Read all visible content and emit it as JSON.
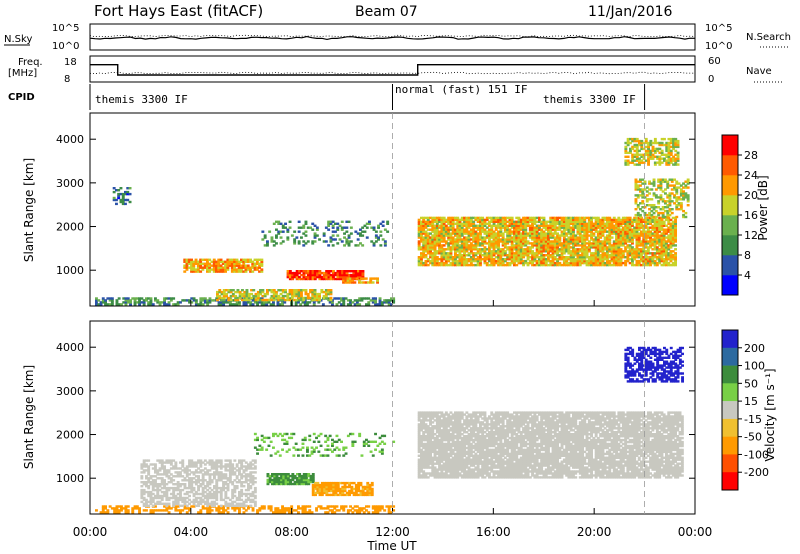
{
  "header": {
    "radar": "Fort Hays East (fitACF)",
    "beam": "Beam 07",
    "date": "11/Jan/2016"
  },
  "top_panels": {
    "nsky_label": "N.Sky",
    "nsky_ticks": [
      "10^5",
      "10^0"
    ],
    "nsearch_label": "N.Search",
    "nsearch_ticks": [
      "10^5",
      "10^0"
    ],
    "freq_label_1": "Freq.",
    "freq_label_2": "[MHz]",
    "freq_ticks": [
      "18",
      "8"
    ],
    "nave_label": "Nave",
    "nave_ticks": [
      "60",
      "0"
    ],
    "cpid_label": "CPID",
    "cpid_segments": [
      "themis 3300 IF",
      "normal (fast) 151 IF",
      "themis 3300 IF"
    ],
    "freq_step": [
      {
        "t": 0.0,
        "mhz": 14.8
      },
      {
        "t": 1.1,
        "mhz": 10.5
      },
      {
        "t": 13.0,
        "mhz": 14.8
      },
      {
        "t": 24.0,
        "mhz": 14.8
      }
    ],
    "cpid_boundaries_hours": [
      12.0,
      22.0
    ]
  },
  "panel_power": {
    "ylabel": "Slant Range [km]",
    "yticks": [
      "1000",
      "2000",
      "3000",
      "4000"
    ],
    "cbar_label": "Power [dB]",
    "cbar_ticks": [
      "4",
      "8",
      "12",
      "16",
      "20",
      "24",
      "28"
    ]
  },
  "panel_velocity": {
    "ylabel": "Slant Range [km]",
    "yticks": [
      "1000",
      "2000",
      "3000",
      "4000"
    ],
    "cbar_label": "Velocity [m s⁻¹]",
    "cbar_ticks": [
      "200",
      "100",
      "50",
      "15",
      "-15",
      "-50",
      "-100",
      "-200"
    ]
  },
  "xaxis": {
    "ticks": [
      "00:00",
      "04:00",
      "08:00",
      "12:00",
      "16:00",
      "20:00",
      "00:00"
    ],
    "label": "Time UT"
  },
  "colors": {
    "power_scale": [
      "#0000ff",
      "#2a52a8",
      "#3c8c46",
      "#6ab04e",
      "#c8d22a",
      "#ff9900",
      "#ff5a00",
      "#ff0000"
    ],
    "velocity_scale": [
      "#2222cc",
      "#2c6aa0",
      "#3c8c3c",
      "#78d046",
      "#c8c8c0",
      "#f0c030",
      "#ff9a00",
      "#ff5000",
      "#ff0000"
    ]
  },
  "chart_data": [
    {
      "type": "heatmap",
      "title": "Power",
      "xlabel": "Time UT",
      "ylabel": "Slant Range [km]",
      "xlim": [
        0,
        24
      ],
      "ylim": [
        180,
        4600
      ],
      "colorbar": {
        "label": "Power [dB]",
        "range": [
          0,
          32
        ]
      },
      "echo_regions": [
        {
          "t0": 0.2,
          "t1": 12.0,
          "r0": 200,
          "r1": 380,
          "level": 10,
          "density": 0.55
        },
        {
          "t0": 3.7,
          "t1": 6.8,
          "r0": 950,
          "r1": 1250,
          "level": 22,
          "density": 0.8
        },
        {
          "t0": 5.0,
          "t1": 9.5,
          "r0": 300,
          "r1": 550,
          "level": 18,
          "density": 0.7
        },
        {
          "t0": 7.8,
          "t1": 10.8,
          "r0": 780,
          "r1": 1000,
          "level": 27,
          "density": 0.9
        },
        {
          "t0": 10.0,
          "t1": 11.4,
          "r0": 700,
          "r1": 820,
          "level": 22,
          "density": 0.8
        },
        {
          "t0": 6.8,
          "t1": 11.8,
          "r0": 1550,
          "r1": 2100,
          "level": 10,
          "density": 0.25
        },
        {
          "t0": 13.0,
          "t1": 23.2,
          "r0": 1100,
          "r1": 2200,
          "level": 20,
          "density": 0.85
        },
        {
          "t0": 21.6,
          "t1": 23.7,
          "r0": 2200,
          "r1": 3100,
          "level": 17,
          "density": 0.5
        },
        {
          "t0": 21.2,
          "t1": 23.3,
          "r0": 3400,
          "r1": 4000,
          "level": 18,
          "density": 0.6
        },
        {
          "t0": 0.9,
          "t1": 1.6,
          "r0": 2500,
          "r1": 2900,
          "level": 8,
          "density": 0.35
        }
      ]
    },
    {
      "type": "heatmap",
      "title": "Velocity",
      "xlabel": "Time UT",
      "ylabel": "Slant Range [km]",
      "xlim": [
        0,
        24
      ],
      "ylim": [
        180,
        4600
      ],
      "colorbar": {
        "label": "Velocity [m s⁻¹]",
        "range": [
          -200,
          200
        ]
      },
      "echo_regions": [
        {
          "t0": 0.2,
          "t1": 12.0,
          "r0": 200,
          "r1": 380,
          "level": -60,
          "density": 0.5
        },
        {
          "t0": 2.0,
          "t1": 6.5,
          "r0": 350,
          "r1": 1400,
          "level": 0,
          "density": 0.6
        },
        {
          "t0": 7.0,
          "t1": 8.8,
          "r0": 850,
          "r1": 1100,
          "level": 40,
          "density": 0.9
        },
        {
          "t0": 8.8,
          "t1": 11.2,
          "r0": 600,
          "r1": 900,
          "level": -40,
          "density": 0.85
        },
        {
          "t0": 13.0,
          "t1": 23.5,
          "r0": 1000,
          "r1": 2500,
          "level": 0,
          "density": 0.85
        },
        {
          "t0": 21.2,
          "t1": 23.5,
          "r0": 3200,
          "r1": 4000,
          "level": 200,
          "density": 0.6
        },
        {
          "t0": 6.5,
          "t1": 12.0,
          "r0": 1500,
          "r1": 2000,
          "level": 30,
          "density": 0.2
        }
      ]
    }
  ]
}
